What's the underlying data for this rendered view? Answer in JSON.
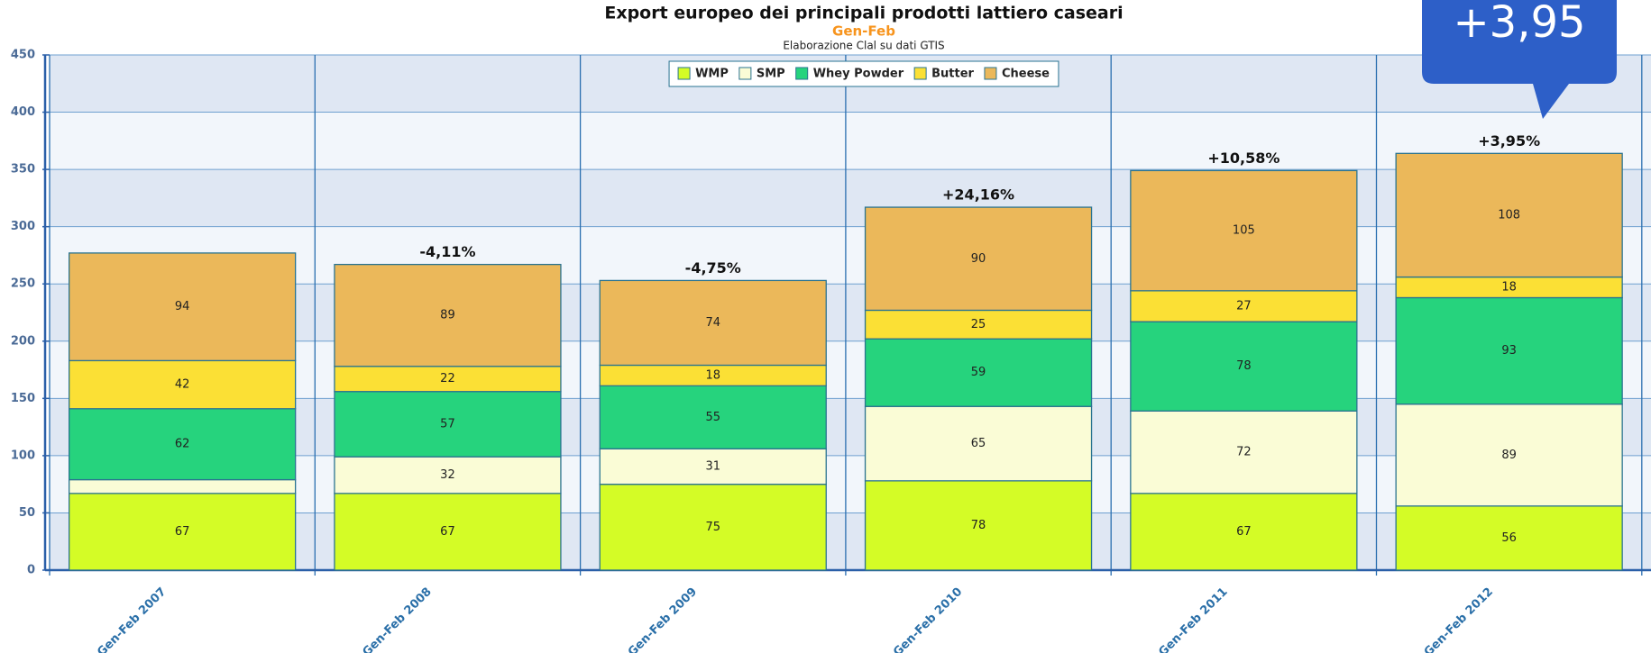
{
  "chart_data": {
    "type": "stacked-bar",
    "title": "Export europeo dei principali prodotti lattiero caseari",
    "subtitle": "Gen-Feb",
    "caption": "Elaborazione Clal su dati GTIS",
    "categories": [
      "Gen-Feb 2007",
      "Gen-Feb 2008",
      "Gen-Feb 2009",
      "Gen-Feb 2010",
      "Gen-Feb 2011",
      "Gen-Feb 2012"
    ],
    "series": [
      {
        "name": "WMP",
        "color": "#d4fc26",
        "values": [
          67,
          67,
          75,
          78,
          67,
          56
        ]
      },
      {
        "name": "SMP",
        "color": "#fafcd6",
        "values": [
          12,
          32,
          31,
          65,
          72,
          89
        ]
      },
      {
        "name": "Whey Powder",
        "color": "#26d37d",
        "values": [
          62,
          57,
          55,
          59,
          78,
          93
        ]
      },
      {
        "name": "Butter",
        "color": "#fbe035",
        "values": [
          42,
          22,
          18,
          25,
          27,
          18
        ]
      },
      {
        "name": "Cheese",
        "color": "#ebb85a",
        "values": [
          94,
          89,
          74,
          90,
          105,
          108
        ]
      }
    ],
    "annotations": [
      null,
      "-4,11%",
      "-4,75%",
      "+24,16%",
      "+10,58%",
      "+3,95%"
    ],
    "callout": "+3,95",
    "ylim": [
      0,
      450
    ],
    "yticks": [
      0,
      50,
      100,
      150,
      200,
      250,
      300,
      350,
      400,
      450
    ],
    "grid": true,
    "legend": "top"
  }
}
